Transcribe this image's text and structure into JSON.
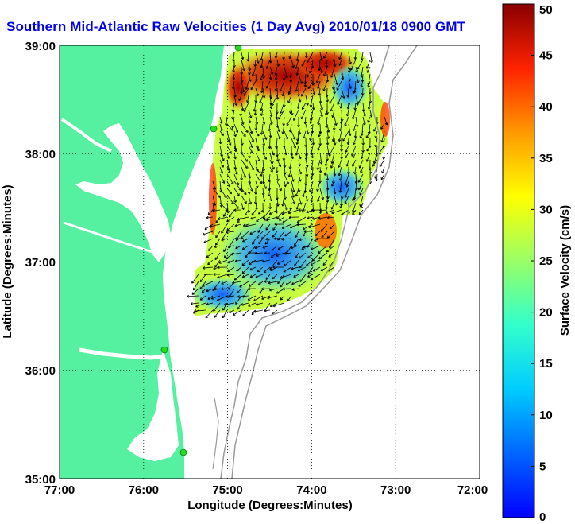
{
  "title": "Southern Mid-Atlantic Raw Velocities (1 Day Avg) 2010/01/18 0900 GMT",
  "x_axis": {
    "label": "Longitude (Degrees:Minutes)",
    "ticks": [
      "77:00",
      "76:00",
      "75:00",
      "74:00",
      "73:00",
      "72:00"
    ]
  },
  "y_axis": {
    "label": "Latitude (Degrees:Minutes)",
    "ticks": [
      "39:00",
      "38:00",
      "37:00",
      "36:00",
      "35:00"
    ]
  },
  "colorbar": {
    "label": "Surface Velocity (cm/s)",
    "ticks": [
      "0",
      "5",
      "10",
      "15",
      "20",
      "25",
      "30",
      "35",
      "40",
      "45",
      "50"
    ],
    "min": 0,
    "max": 50
  },
  "colors": {
    "land": "#55f0a0",
    "title": "#0000ee",
    "grid": "#000000",
    "contour": "#999999",
    "station": "#22dd22"
  }
}
